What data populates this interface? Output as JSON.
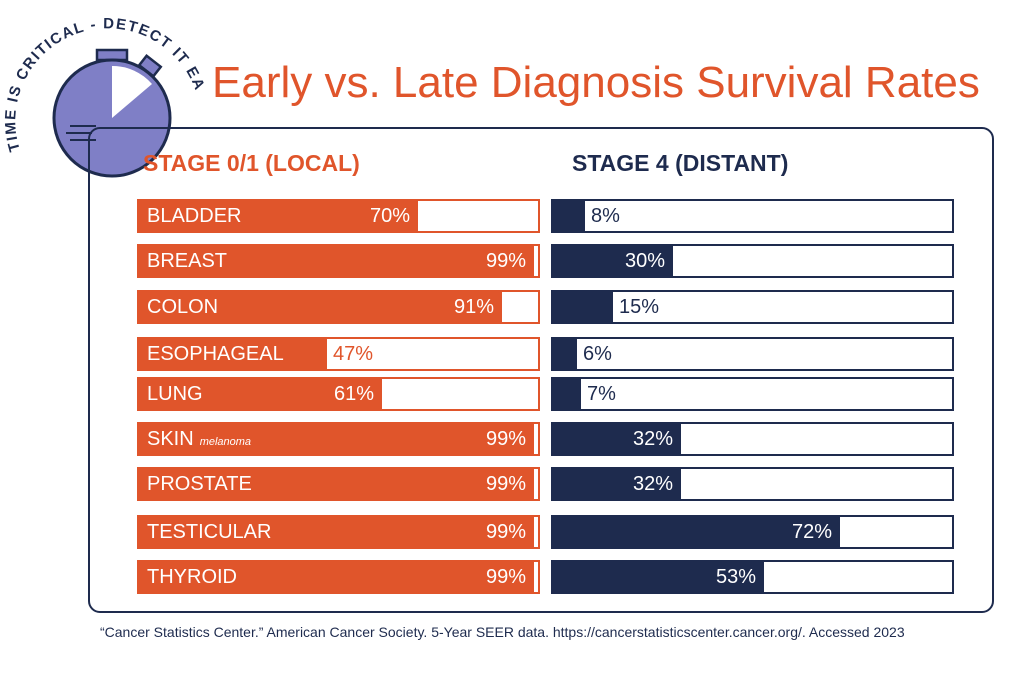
{
  "badge": {
    "arc_text": "TIME IS CRITICAL - DETECT IT EARLY"
  },
  "colors": {
    "orange": "#e0552b",
    "navy": "#1e2b4e",
    "watch_face": "#7f7fc6"
  },
  "citation": "“Cancer Statistics Center.” American Cancer Society. 5-Year SEER data. https://cancerstatisticscenter.cancer.org/. Accessed 2023",
  "chart_data": {
    "type": "bar",
    "orientation": "horizontal",
    "title": "Early vs. Late Diagnosis Survival Rates",
    "unit": "%",
    "xlim": [
      0,
      100
    ],
    "categories": [
      "BLADDER",
      "BREAST",
      "COLON",
      "ESOPHAGEAL",
      "LUNG",
      "SKIN",
      "PROSTATE",
      "TESTICULAR",
      "THYROID"
    ],
    "category_subtitles": [
      "",
      "",
      "",
      "",
      "",
      "melanoma",
      "",
      "",
      ""
    ],
    "series": [
      {
        "name": "STAGE 0/1 (LOCAL)",
        "values": [
          70,
          99,
          91,
          47,
          61,
          99,
          99,
          99,
          99
        ]
      },
      {
        "name": "STAGE 4 (DISTANT)",
        "values": [
          8,
          30,
          15,
          6,
          7,
          32,
          32,
          72,
          53
        ]
      }
    ]
  }
}
